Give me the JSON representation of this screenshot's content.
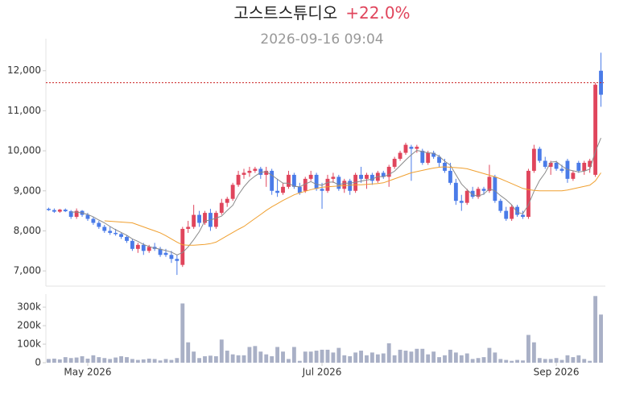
{
  "chart_data": {
    "type": "candlestick",
    "title": "고스트스튜디오",
    "change": "+22.0%",
    "subtitle": "2026-09-16 09:04",
    "up_color": "#e0455c",
    "down_color": "#4a7be8",
    "volume_color": "#a9b0c6",
    "xlim": [
      -0.5,
      99.5
    ],
    "xticks": [
      {
        "value": 7,
        "label": "May 2026"
      },
      {
        "value": 49,
        "label": "Jul 2026"
      },
      {
        "value": 91,
        "label": "Sep 2026"
      }
    ],
    "ylim": [
      6620,
      12800
    ],
    "yticks": [
      {
        "value": 7000,
        "label": "7,000"
      },
      {
        "value": 8000,
        "label": "8,000"
      },
      {
        "value": 9000,
        "label": "9,000"
      },
      {
        "value": 10000,
        "label": "10,000"
      },
      {
        "value": 11000,
        "label": "11,000"
      },
      {
        "value": 12000,
        "label": "12,000"
      }
    ],
    "volume_ylim": [
      0,
      370000
    ],
    "volume_yticks": [
      0,
      {
        "value": 100000,
        "label": "100k"
      },
      {
        "value": 200000,
        "label": "200k"
      },
      {
        "value": 300000,
        "label": "300k"
      }
    ],
    "ref_line": {
      "value": 11700,
      "color": "#cc2222"
    },
    "open": [
      8550,
      8520,
      8480,
      8530,
      8490,
      8350,
      8500,
      8400,
      8300,
      8200,
      8100,
      8000,
      7950,
      7920,
      7850,
      7750,
      7550,
      7650,
      7500,
      7600,
      7550,
      7450,
      7400,
      7300,
      7150,
      8050,
      8100,
      8400,
      8200,
      8450,
      8100,
      8450,
      8700,
      8800,
      9150,
      9400,
      9450,
      9500,
      9550,
      9400,
      9500,
      9000,
      8950,
      9100,
      9400,
      9100,
      9000,
      9300,
      9400,
      9050,
      9000,
      9300,
      9350,
      9050,
      9250,
      9000,
      9400,
      9300,
      9400,
      9250,
      9450,
      9350,
      9600,
      9800,
      9950,
      10100,
      10050,
      10000,
      9700,
      9950,
      9850,
      9700,
      9500,
      9200,
      8750,
      8700,
      9000,
      8850,
      9050,
      9000,
      9350,
      8750,
      8500,
      8300,
      8600,
      8400,
      8350,
      9500,
      10050,
      9750,
      9600,
      9700,
      9550,
      9750,
      9300,
      9700,
      9500,
      9600,
      9400,
      12000
    ],
    "high": [
      8580,
      8560,
      8550,
      8560,
      8520,
      8560,
      8520,
      8450,
      8350,
      8250,
      8150,
      8100,
      8050,
      7950,
      7900,
      7800,
      7700,
      7700,
      7650,
      7700,
      7600,
      7550,
      7500,
      7400,
      8100,
      8250,
      8650,
      8500,
      8500,
      8550,
      8500,
      8800,
      8850,
      9200,
      9500,
      9550,
      9600,
      9600,
      9600,
      9600,
      9550,
      9300,
      9200,
      9500,
      9450,
      9200,
      9350,
      9500,
      9450,
      9200,
      9400,
      9450,
      9400,
      9300,
      9300,
      9450,
      9600,
      9450,
      9450,
      9500,
      9500,
      9650,
      9850,
      10000,
      10200,
      10150,
      10150,
      10050,
      10000,
      10000,
      9900,
      9800,
      9700,
      9300,
      8900,
      9050,
      9100,
      9100,
      9100,
      9650,
      9400,
      8800,
      8600,
      8650,
      8650,
      8500,
      9550,
      10150,
      10100,
      9850,
      9750,
      9750,
      9650,
      9800,
      9500,
      9750,
      9750,
      9800,
      11700,
      12450
    ],
    "low": [
      8500,
      8450,
      8450,
      8470,
      8300,
      8300,
      8350,
      8250,
      8150,
      8050,
      7950,
      7900,
      7880,
      7800,
      7700,
      7500,
      7450,
      7400,
      7450,
      7500,
      7350,
      7350,
      7200,
      6900,
      7100,
      7950,
      8050,
      8100,
      8150,
      8000,
      8050,
      8400,
      8600,
      8750,
      9100,
      9300,
      9350,
      9450,
      9300,
      9100,
      8900,
      8850,
      8900,
      9050,
      9050,
      8900,
      8950,
      9250,
      9000,
      8550,
      8950,
      9200,
      9000,
      8950,
      8900,
      8950,
      9200,
      9050,
      9150,
      9200,
      9300,
      9100,
      9550,
      9750,
      9900,
      9250,
      9950,
      9650,
      9650,
      9800,
      9600,
      9450,
      9150,
      8650,
      8500,
      8650,
      8800,
      8800,
      8900,
      8950,
      8700,
      8450,
      8250,
      8250,
      8350,
      8300,
      8300,
      9450,
      9700,
      9550,
      9400,
      9500,
      9450,
      9200,
      9250,
      9450,
      9400,
      9450,
      9350,
      11100
    ],
    "close": [
      8520,
      8480,
      8530,
      8490,
      8350,
      8500,
      8400,
      8300,
      8200,
      8100,
      8000,
      7950,
      7920,
      7850,
      7750,
      7550,
      7650,
      7500,
      7600,
      7550,
      7400,
      7400,
      7300,
      7250,
      8050,
      8100,
      8400,
      8200,
      8450,
      8100,
      8450,
      8700,
      8800,
      9150,
      9400,
      9450,
      9500,
      9550,
      9400,
      9500,
      9000,
      8950,
      9100,
      9400,
      9100,
      8950,
      9300,
      9400,
      9050,
      9000,
      9300,
      9350,
      9050,
      9250,
      9000,
      9400,
      9300,
      9400,
      9250,
      9450,
      9350,
      9600,
      9800,
      9950,
      10150,
      10050,
      10100,
      9700,
      9950,
      9850,
      9700,
      9500,
      9200,
      8750,
      8700,
      9000,
      8850,
      9050,
      9000,
      9350,
      8750,
      8500,
      8300,
      8600,
      8400,
      8350,
      9500,
      10050,
      9750,
      9600,
      9700,
      9550,
      9500,
      9300,
      9450,
      9500,
      9700,
      9750,
      11650,
      11400
    ],
    "volume": [
      20000,
      22000,
      18000,
      30000,
      25000,
      28000,
      35000,
      22000,
      40000,
      30000,
      25000,
      20000,
      28000,
      35000,
      30000,
      20000,
      15000,
      18000,
      22000,
      20000,
      12000,
      20000,
      15000,
      25000,
      320000,
      110000,
      60000,
      25000,
      35000,
      38000,
      35000,
      125000,
      65000,
      45000,
      40000,
      40000,
      85000,
      90000,
      60000,
      45000,
      35000,
      85000,
      60000,
      20000,
      85000,
      10000,
      60000,
      60000,
      65000,
      70000,
      70000,
      55000,
      80000,
      40000,
      35000,
      55000,
      65000,
      40000,
      55000,
      45000,
      50000,
      105000,
      40000,
      70000,
      65000,
      60000,
      75000,
      75000,
      45000,
      60000,
      30000,
      40000,
      70000,
      55000,
      40000,
      50000,
      20000,
      25000,
      30000,
      80000,
      55000,
      20000,
      15000,
      10000,
      15000,
      12000,
      150000,
      110000,
      25000,
      20000,
      20000,
      25000,
      15000,
      40000,
      30000,
      40000,
      20000,
      10000,
      360000,
      260000
    ],
    "ma_lines": [
      {
        "color": "#8a8a8a",
        "values": [
          null,
          null,
          null,
          null,
          8470,
          8470,
          8450,
          8410,
          8350,
          8270,
          8200,
          8110,
          8030,
          7960,
          7890,
          7800,
          7740,
          7660,
          7610,
          7570,
          7540,
          7510,
          7470,
          7400,
          7460,
          7600,
          7780,
          7980,
          8250,
          8270,
          8320,
          8370,
          8510,
          8640,
          8900,
          9100,
          9260,
          9370,
          9460,
          9480,
          9390,
          9290,
          9190,
          9190,
          9110,
          9100,
          9170,
          9230,
          9160,
          9140,
          9210,
          9220,
          9150,
          9190,
          9190,
          9210,
          9240,
          9270,
          9290,
          9360,
          9350,
          9410,
          9490,
          9630,
          9770,
          9900,
          10010,
          9980,
          9950,
          9940,
          9860,
          9740,
          9640,
          9400,
          9170,
          9030,
          8900,
          8870,
          8920,
          9050,
          9000,
          8880,
          8780,
          8650,
          8460,
          8430,
          8650,
          8990,
          9260,
          9450,
          9720,
          9730,
          9620,
          9530,
          9500,
          9470,
          9490,
          9540,
          9980,
          10320
        ]
      },
      {
        "color": "#f0a030",
        "values": [
          null,
          null,
          null,
          null,
          null,
          null,
          null,
          null,
          null,
          null,
          8250,
          8240,
          8230,
          8220,
          8210,
          8200,
          8150,
          8100,
          8050,
          8000,
          7950,
          7880,
          7800,
          7720,
          7650,
          7640,
          7640,
          7650,
          7660,
          7680,
          7720,
          7800,
          7880,
          7960,
          8040,
          8110,
          8210,
          8310,
          8410,
          8510,
          8600,
          8680,
          8760,
          8830,
          8900,
          8950,
          8990,
          9030,
          9060,
          9090,
          9100,
          9110,
          9120,
          9130,
          9140,
          9150,
          9150,
          9160,
          9170,
          9180,
          9200,
          9250,
          9300,
          9350,
          9400,
          9450,
          9480,
          9510,
          9540,
          9570,
          9590,
          9600,
          9590,
          9580,
          9570,
          9550,
          9510,
          9470,
          9430,
          9390,
          9350,
          9300,
          9240,
          9180,
          9120,
          9060,
          9030,
          9010,
          9000,
          9000,
          9000,
          9000,
          9000,
          9020,
          9050,
          9080,
          9110,
          9140,
          9250,
          9450
        ]
      }
    ]
  }
}
